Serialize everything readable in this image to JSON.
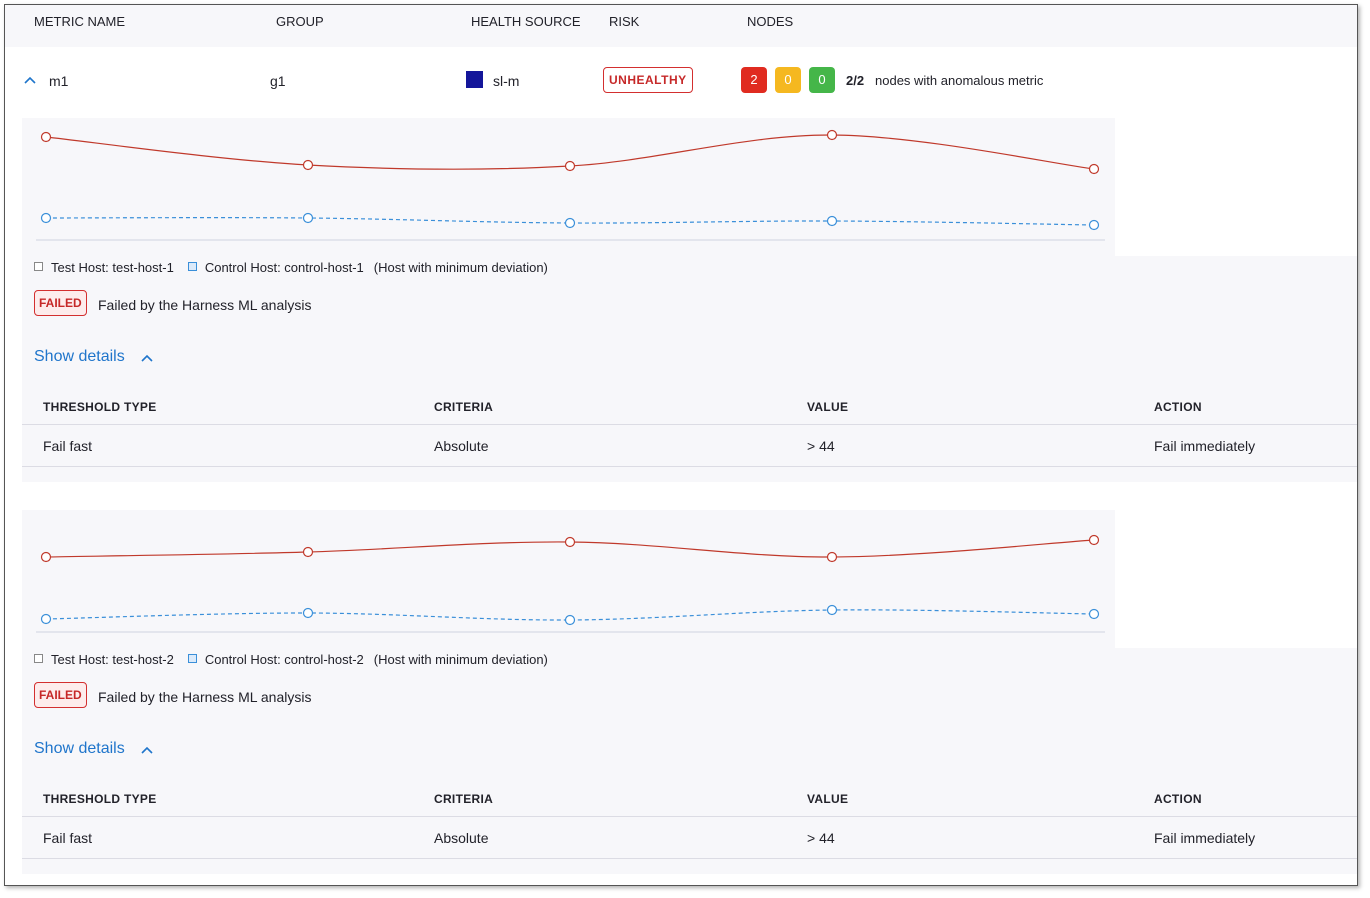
{
  "header": {
    "columns": [
      "METRIC NAME",
      "GROUP",
      "HEALTH SOURCE",
      "RISK",
      "NODES"
    ]
  },
  "row": {
    "metric": "m1",
    "group": "g1",
    "health_source": "sl-m",
    "risk": "UNHEALTHY",
    "nodes": {
      "counts": [
        "2",
        "0",
        "0"
      ],
      "summary_count": "2/2",
      "summary_text": "nodes with anomalous metric"
    }
  },
  "hosts": [
    {
      "chart": {
        "type": "line",
        "series": [
          {
            "name": "Test Host: test-host-1",
            "color": "#c0392b",
            "values": [
              103,
              75,
              74,
              105,
              71
            ]
          },
          {
            "name": "Control Host: control-host-1",
            "color": "#3a8fd9",
            "values": [
              22,
              22,
              17,
              19,
              15
            ]
          }
        ]
      },
      "note": "(Host with minimum deviation)",
      "status": "FAILED",
      "status_text": "Failed by the Harness ML analysis",
      "details_link": "Show details",
      "table": {
        "header": [
          "THRESHOLD TYPE",
          "CRITERIA",
          "VALUE",
          "ACTION"
        ],
        "rows": [
          [
            "Fail fast",
            "Absolute",
            "> 44",
            "Fail immediately"
          ]
        ]
      }
    },
    {
      "chart": {
        "type": "line",
        "series": [
          {
            "name": "Test Host: test-host-2",
            "color": "#c0392b",
            "values": [
              75,
              80,
              90,
              75,
              92
            ]
          },
          {
            "name": "Control Host: control-host-2",
            "color": "#3a8fd9",
            "values": [
              13,
              19,
              12,
              22,
              18
            ]
          }
        ]
      },
      "note": "(Host with minimum deviation)",
      "status": "FAILED",
      "status_text": "Failed by the Harness ML analysis",
      "details_link": "Show details",
      "table": {
        "header": [
          "THRESHOLD TYPE",
          "CRITERIA",
          "VALUE",
          "ACTION"
        ],
        "rows": [
          [
            "Fail fast",
            "Absolute",
            "> 44",
            "Fail immediately"
          ]
        ]
      }
    }
  ]
}
